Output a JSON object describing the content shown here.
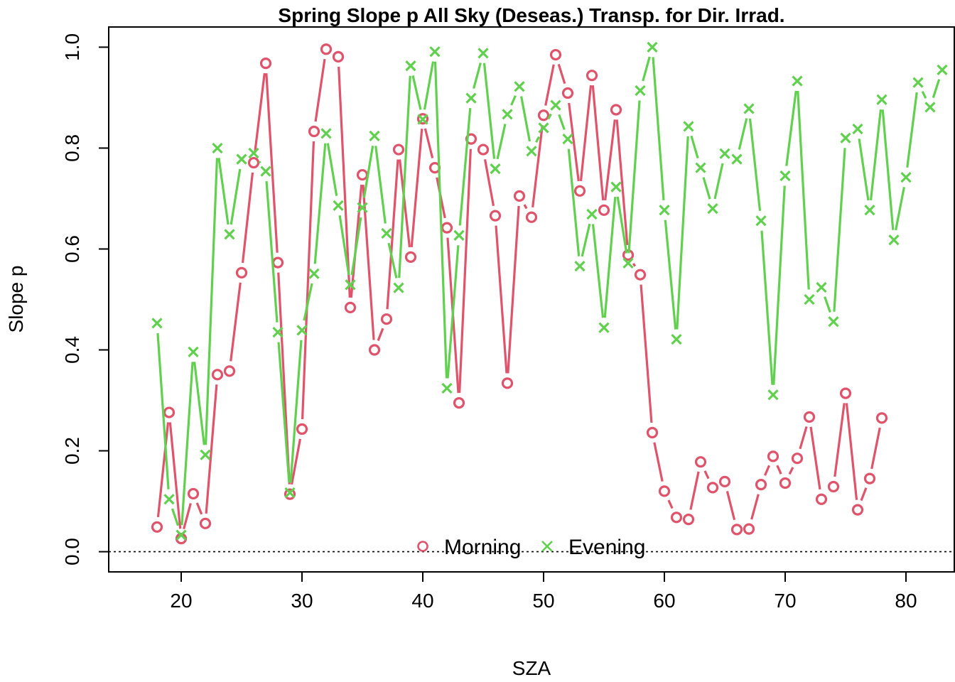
{
  "chart_data": {
    "type": "line",
    "title": "Spring Slope p All Sky (Deseas.) Transp. for Dir. Irrad.",
    "xlabel": "SZA",
    "ylabel": "Slope p",
    "xlim": [
      14,
      84
    ],
    "ylim": [
      -0.04,
      1.04
    ],
    "x_ticks": [
      20,
      30,
      40,
      50,
      60,
      70,
      80
    ],
    "y_ticks": [
      0.0,
      0.2,
      0.4,
      0.6,
      0.8,
      1.0
    ],
    "x_tick_labels": [
      "20",
      "30",
      "40",
      "50",
      "60",
      "70",
      "80"
    ],
    "y_tick_labels": [
      "0.0",
      "0.2",
      "0.4",
      "0.6",
      "0.8",
      "1.0"
    ],
    "reference_line": {
      "y": 0,
      "style": "dotted"
    },
    "grid": false,
    "legend_position": "bottom-center",
    "series": [
      {
        "name": "Morning",
        "color": "#DF536B",
        "marker": "circle",
        "x": [
          18,
          19,
          20,
          21,
          22,
          23,
          24,
          25,
          26,
          27,
          28,
          29,
          30,
          31,
          32,
          33,
          34,
          35,
          36,
          37,
          38,
          39,
          40,
          41,
          42,
          43,
          44,
          45,
          46,
          47,
          48,
          49,
          50,
          51,
          52,
          53,
          54,
          55,
          56,
          57,
          58,
          59,
          60,
          61,
          62,
          63,
          64,
          65,
          66,
          67,
          68,
          69,
          70,
          71,
          72,
          73,
          74,
          75,
          76,
          77,
          78
        ],
        "values": [
          0.049,
          0.276,
          0.026,
          0.115,
          0.056,
          0.351,
          0.358,
          0.553,
          0.771,
          0.968,
          0.573,
          0.114,
          0.243,
          0.833,
          0.996,
          0.981,
          0.484,
          0.747,
          0.4,
          0.461,
          0.797,
          0.584,
          0.858,
          0.761,
          0.642,
          0.295,
          0.818,
          0.797,
          0.666,
          0.334,
          0.705,
          0.663,
          0.865,
          0.985,
          0.909,
          0.715,
          0.944,
          0.677,
          0.876,
          0.588,
          0.549,
          0.236,
          0.12,
          0.068,
          0.064,
          0.178,
          0.127,
          0.139,
          0.044,
          0.045,
          0.133,
          0.189,
          0.136,
          0.185,
          0.267,
          0.104,
          0.129,
          0.314,
          0.083,
          0.145,
          0.265
        ]
      },
      {
        "name": "Evening",
        "color": "#61D04F",
        "marker": "x",
        "x": [
          18,
          19,
          20,
          21,
          22,
          23,
          24,
          25,
          26,
          27,
          28,
          29,
          30,
          31,
          32,
          33,
          34,
          35,
          36,
          37,
          38,
          39,
          40,
          41,
          42,
          43,
          44,
          45,
          46,
          47,
          48,
          49,
          50,
          51,
          52,
          53,
          54,
          55,
          56,
          57,
          58,
          59,
          60,
          61,
          62,
          63,
          64,
          65,
          66,
          67,
          68,
          69,
          70,
          71,
          72,
          73,
          74,
          75,
          76,
          77,
          78,
          79,
          80,
          81,
          82,
          83
        ],
        "values": [
          0.453,
          0.104,
          0.033,
          0.396,
          0.192,
          0.8,
          0.629,
          0.778,
          0.79,
          0.754,
          0.435,
          0.117,
          0.439,
          0.551,
          0.829,
          0.686,
          0.529,
          0.682,
          0.824,
          0.631,
          0.523,
          0.963,
          0.857,
          0.991,
          0.324,
          0.627,
          0.899,
          0.988,
          0.759,
          0.867,
          0.922,
          0.794,
          0.84,
          0.885,
          0.818,
          0.566,
          0.669,
          0.444,
          0.723,
          0.572,
          0.914,
          1.0,
          0.677,
          0.421,
          0.843,
          0.761,
          0.68,
          0.789,
          0.778,
          0.878,
          0.656,
          0.311,
          0.745,
          0.933,
          0.5,
          0.524,
          0.456,
          0.82,
          0.838,
          0.677,
          0.896,
          0.618,
          0.742,
          0.93,
          0.881,
          0.955
        ]
      }
    ]
  }
}
